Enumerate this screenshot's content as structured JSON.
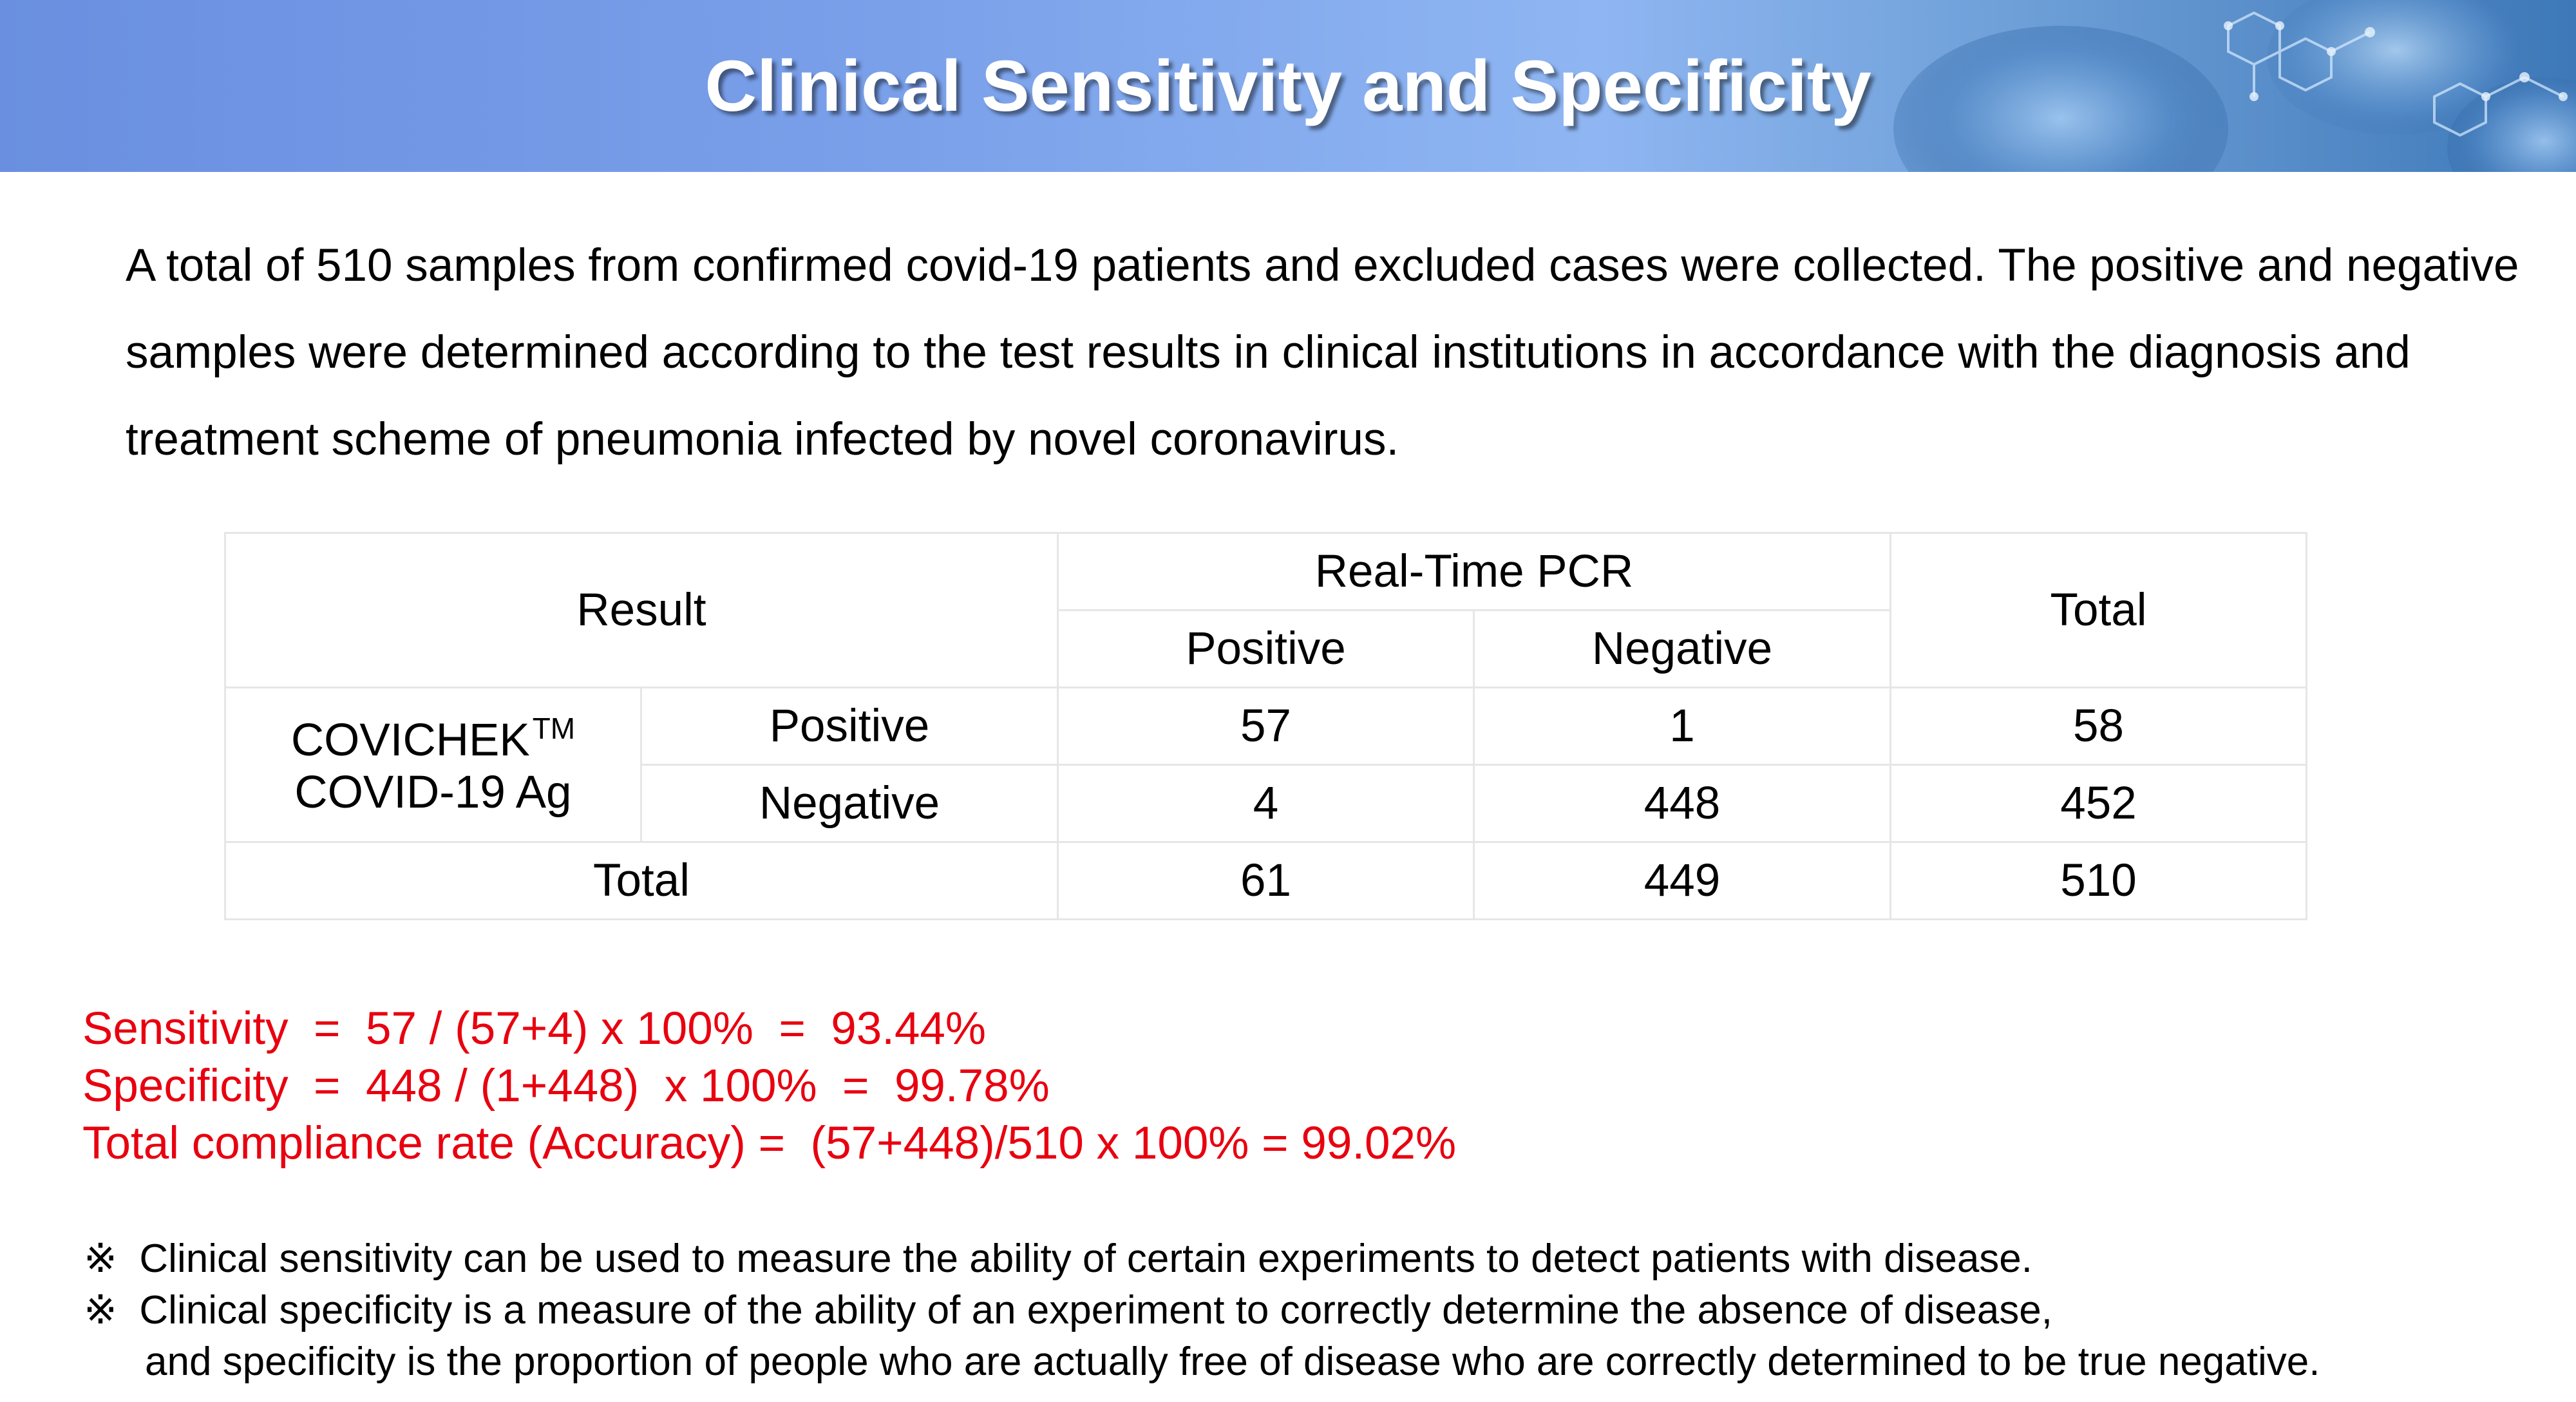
{
  "header": {
    "title": "Clinical Sensitivity and Specificity",
    "accent_color": "#7aa0ea"
  },
  "intro": {
    "text": "A total of 510 samples from confirmed covid-19 patients and excluded cases were collected. The positive and negative samples were determined according to the test results in clinical institutions in accordance with the diagnosis and treatment scheme of pneumonia infected by novel coronavirus."
  },
  "table": {
    "result_header": "Result",
    "pcr_header": "Real-Time PCR",
    "pcr_positive": "Positive",
    "pcr_negative": "Negative",
    "total_header": "Total",
    "test_name_line1": "COVICHEK",
    "test_name_tm": "TM",
    "test_name_line2": "COVID-19 Ag",
    "rows": [
      {
        "label": "Positive",
        "pcr_positive": "57",
        "pcr_negative": "1",
        "total": "58"
      },
      {
        "label": "Negative",
        "pcr_positive": "4",
        "pcr_negative": "448",
        "total": "452"
      }
    ],
    "total_row": {
      "label": "Total",
      "pcr_positive": "61",
      "pcr_negative": "449",
      "total": "510"
    }
  },
  "formulas": {
    "color": "#e8000f",
    "sensitivity": "Sensitivity  =  57 / (57+4) x 100%  =  93.44%",
    "specificity": "Specificity  =  448 / (1+448)  x 100%  =  99.78%",
    "accuracy": "Total compliance rate (Accuracy) =  (57+448)/510 x 100% = 99.02%"
  },
  "notes": {
    "note1": "※  Clinical sensitivity can be used to measure the ability of certain experiments to detect patients with disease.",
    "note2": "※  Clinical specificity is a measure of the ability of an experiment to correctly determine the absence of disease,",
    "note2_cont": "and specificity is the proportion of people who are actually free of disease who are correctly determined to be true negative."
  }
}
